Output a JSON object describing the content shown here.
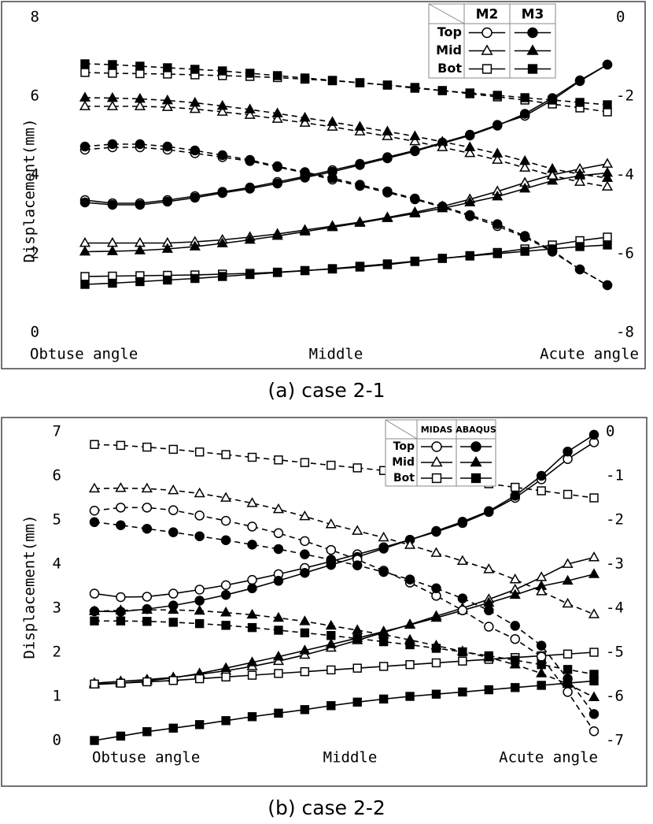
{
  "chart_data": [
    {
      "type": "line",
      "caption": "(a) case 2-1",
      "y_label": "Displacement(mm)",
      "x_labels": [
        "Obtuse angle",
        "Middle",
        "Acute angle"
      ],
      "ylim": [
        0,
        8
      ],
      "yticks": [
        0,
        2,
        4,
        6,
        8
      ],
      "y2lim": [
        -8,
        0
      ],
      "y2ticks": [
        -8,
        -6,
        -4,
        -2,
        0
      ],
      "legend": {
        "columns": [
          "M2",
          "M3"
        ],
        "rows": [
          "Top",
          "Mid",
          "Bot"
        ],
        "markers": [
          "circle",
          "triangle",
          "square"
        ],
        "fills": [
          "#ffffff",
          "#000000"
        ],
        "corner": "top-right"
      },
      "series": [
        {
          "position": "Top",
          "model": "M2",
          "axis": "y",
          "style": "solid",
          "values": [
            3.36,
            3.28,
            3.28,
            3.36,
            3.46,
            3.57,
            3.68,
            3.82,
            3.96,
            4.12,
            4.28,
            4.45,
            4.62,
            4.82,
            5.02,
            5.27,
            5.5,
            5.9,
            6.38,
            6.8
          ]
        },
        {
          "position": "Top",
          "model": "M3",
          "axis": "y",
          "style": "solid",
          "values": [
            3.3,
            3.24,
            3.24,
            3.32,
            3.42,
            3.54,
            3.65,
            3.78,
            3.93,
            4.08,
            4.25,
            4.42,
            4.6,
            4.8,
            5.0,
            5.25,
            5.55,
            5.95,
            6.4,
            6.8
          ]
        },
        {
          "position": "Mid",
          "model": "M2",
          "axis": "y",
          "style": "solid",
          "values": [
            2.27,
            2.27,
            2.27,
            2.27,
            2.3,
            2.35,
            2.42,
            2.5,
            2.6,
            2.7,
            2.8,
            2.92,
            3.05,
            3.2,
            3.38,
            3.58,
            3.8,
            4.0,
            4.15,
            4.28
          ]
        },
        {
          "position": "Mid",
          "model": "M3",
          "axis": "y",
          "style": "solid",
          "values": [
            2.05,
            2.06,
            2.08,
            2.12,
            2.18,
            2.26,
            2.35,
            2.45,
            2.56,
            2.67,
            2.78,
            2.9,
            3.02,
            3.15,
            3.3,
            3.45,
            3.65,
            3.85,
            3.98,
            4.05
          ]
        },
        {
          "position": "Bot",
          "model": "M2",
          "axis": "y",
          "style": "solid",
          "values": [
            1.42,
            1.43,
            1.44,
            1.45,
            1.46,
            1.48,
            1.5,
            1.53,
            1.57,
            1.61,
            1.66,
            1.72,
            1.8,
            1.88,
            1.95,
            2.03,
            2.12,
            2.22,
            2.33,
            2.42
          ]
        },
        {
          "position": "Bot",
          "model": "M3",
          "axis": "y",
          "style": "solid",
          "values": [
            1.22,
            1.25,
            1.29,
            1.33,
            1.37,
            1.42,
            1.47,
            1.52,
            1.57,
            1.62,
            1.68,
            1.74,
            1.81,
            1.88,
            1.94,
            2.0,
            2.06,
            2.12,
            2.18,
            2.22
          ]
        },
        {
          "position": "Top",
          "model": "M2",
          "axis": "y2",
          "style": "dashed",
          "values": [
            -3.36,
            -3.3,
            -3.3,
            -3.36,
            -3.45,
            -3.55,
            -3.65,
            -3.8,
            -3.95,
            -4.12,
            -4.28,
            -4.45,
            -4.62,
            -4.82,
            -5.05,
            -5.3,
            -5.58,
            -5.95,
            -6.4,
            -6.8
          ]
        },
        {
          "position": "Top",
          "model": "M3",
          "axis": "y2",
          "style": "dashed",
          "values": [
            -3.28,
            -3.22,
            -3.22,
            -3.28,
            -3.38,
            -3.5,
            -3.62,
            -3.78,
            -3.93,
            -4.08,
            -4.25,
            -4.42,
            -4.6,
            -4.8,
            -5.02,
            -5.25,
            -5.55,
            -5.92,
            -6.4,
            -6.8
          ]
        },
        {
          "position": "Mid",
          "model": "M2",
          "axis": "y2",
          "style": "dashed",
          "values": [
            -2.26,
            -2.26,
            -2.26,
            -2.28,
            -2.33,
            -2.4,
            -2.48,
            -2.58,
            -2.68,
            -2.78,
            -2.9,
            -3.02,
            -3.15,
            -3.3,
            -3.45,
            -3.62,
            -3.82,
            -4.02,
            -4.18,
            -4.3
          ]
        },
        {
          "position": "Mid",
          "model": "M3",
          "axis": "y2",
          "style": "dashed",
          "values": [
            -2.04,
            -2.05,
            -2.07,
            -2.11,
            -2.17,
            -2.25,
            -2.34,
            -2.44,
            -2.55,
            -2.66,
            -2.78,
            -2.9,
            -3.02,
            -3.16,
            -3.3,
            -3.46,
            -3.65,
            -3.85,
            -3.98,
            -4.08
          ]
        },
        {
          "position": "Bot",
          "model": "M2",
          "axis": "y2",
          "style": "dashed",
          "values": [
            -1.4,
            -1.42,
            -1.43,
            -1.44,
            -1.46,
            -1.48,
            -1.5,
            -1.53,
            -1.57,
            -1.61,
            -1.66,
            -1.72,
            -1.78,
            -1.86,
            -1.94,
            -2.02,
            -2.1,
            -2.2,
            -2.3,
            -2.4
          ]
        },
        {
          "position": "Bot",
          "model": "M3",
          "axis": "y2",
          "style": "dashed",
          "values": [
            -1.18,
            -1.2,
            -1.24,
            -1.28,
            -1.32,
            -1.36,
            -1.42,
            -1.48,
            -1.54,
            -1.6,
            -1.66,
            -1.72,
            -1.8,
            -1.86,
            -1.92,
            -1.98,
            -2.04,
            -2.1,
            -2.16,
            -2.22
          ]
        }
      ]
    },
    {
      "type": "line",
      "caption": "(b) case 2-2",
      "y_label": "Displacement(mm)",
      "x_labels": [
        "Obtuse angle",
        "Middle",
        "Acute angle"
      ],
      "ylim": [
        0,
        7
      ],
      "yticks": [
        0,
        1,
        2,
        3,
        4,
        5,
        6,
        7
      ],
      "y2lim": [
        -7,
        0
      ],
      "y2ticks": [
        -7,
        -6,
        -5,
        -4,
        -3,
        -2,
        -1,
        0
      ],
      "legend": {
        "columns": [
          "MIDAS",
          "ABAQUS"
        ],
        "rows": [
          "Top",
          "Mid",
          "Bot"
        ],
        "markers": [
          "circle",
          "triangle",
          "square"
        ],
        "fills": [
          "#ffffff",
          "#000000"
        ],
        "corner": "top-right"
      },
      "series": [
        {
          "position": "Top",
          "model": "MIDAS",
          "axis": "y",
          "style": "solid",
          "values": [
            3.33,
            3.25,
            3.26,
            3.33,
            3.42,
            3.52,
            3.64,
            3.77,
            3.91,
            4.06,
            4.22,
            4.38,
            4.55,
            4.73,
            4.93,
            5.18,
            5.5,
            5.92,
            6.38,
            6.76
          ]
        },
        {
          "position": "Top",
          "model": "ABAQUS",
          "axis": "y",
          "style": "solid",
          "values": [
            2.93,
            2.92,
            2.98,
            3.06,
            3.17,
            3.3,
            3.45,
            3.62,
            3.8,
            3.98,
            4.16,
            4.35,
            4.55,
            4.75,
            4.96,
            5.2,
            5.55,
            6.0,
            6.55,
            6.93
          ]
        },
        {
          "position": "Mid",
          "model": "MIDAS",
          "axis": "y",
          "style": "solid",
          "values": [
            1.3,
            1.34,
            1.38,
            1.43,
            1.5,
            1.58,
            1.68,
            1.8,
            1.94,
            2.1,
            2.27,
            2.45,
            2.63,
            2.82,
            3.0,
            3.2,
            3.42,
            3.7,
            4.0,
            4.15
          ]
        },
        {
          "position": "Mid",
          "model": "ABAQUS",
          "axis": "y",
          "style": "solid",
          "values": [
            1.27,
            1.3,
            1.35,
            1.42,
            1.52,
            1.64,
            1.77,
            1.9,
            2.04,
            2.18,
            2.32,
            2.47,
            2.62,
            2.78,
            2.95,
            3.12,
            3.3,
            3.5,
            3.62,
            3.77
          ]
        },
        {
          "position": "Bot",
          "model": "MIDAS",
          "axis": "y",
          "style": "solid",
          "values": [
            1.28,
            1.3,
            1.33,
            1.36,
            1.4,
            1.44,
            1.48,
            1.52,
            1.56,
            1.6,
            1.64,
            1.68,
            1.72,
            1.76,
            1.8,
            1.84,
            1.88,
            1.92,
            1.96,
            2.0
          ]
        },
        {
          "position": "Bot",
          "model": "ABAQUS",
          "axis": "y",
          "style": "solid",
          "values": [
            0,
            0.1,
            0.2,
            0.28,
            0.36,
            0.45,
            0.54,
            0.62,
            0.7,
            0.79,
            0.87,
            0.94,
            1.0,
            1.05,
            1.1,
            1.15,
            1.2,
            1.25,
            1.3,
            1.35
          ]
        },
        {
          "position": "Top",
          "model": "MIDAS",
          "axis": "y2",
          "style": "dashed",
          "values": [
            -1.79,
            -1.72,
            -1.72,
            -1.78,
            -1.9,
            -2.02,
            -2.15,
            -2.3,
            -2.48,
            -2.68,
            -2.9,
            -3.15,
            -3.42,
            -3.72,
            -4.05,
            -4.42,
            -4.7,
            -5.1,
            -5.9,
            -6.79
          ]
        },
        {
          "position": "Top",
          "model": "ABAQUS",
          "axis": "y2",
          "style": "dashed",
          "values": [
            -2.05,
            -2.12,
            -2.2,
            -2.28,
            -2.37,
            -2.46,
            -2.56,
            -2.66,
            -2.78,
            -2.9,
            -3.03,
            -3.18,
            -3.35,
            -3.55,
            -3.78,
            -4.05,
            -4.4,
            -4.85,
            -5.6,
            -6.4
          ]
        },
        {
          "position": "Mid",
          "model": "MIDAS",
          "axis": "y2",
          "style": "dashed",
          "values": [
            -1.29,
            -1.28,
            -1.29,
            -1.33,
            -1.4,
            -1.5,
            -1.62,
            -1.76,
            -1.92,
            -2.1,
            -2.25,
            -2.4,
            -2.57,
            -2.75,
            -2.93,
            -3.12,
            -3.35,
            -3.62,
            -3.9,
            -4.14
          ]
        },
        {
          "position": "Mid",
          "model": "ABAQUS",
          "axis": "y2",
          "style": "dashed",
          "values": [
            -4.07,
            -4.05,
            -4.04,
            -4.04,
            -4.06,
            -4.1,
            -4.15,
            -4.22,
            -4.3,
            -4.4,
            -4.5,
            -4.6,
            -4.72,
            -4.85,
            -4.98,
            -5.12,
            -5.28,
            -5.48,
            -5.72,
            -6.02
          ]
        },
        {
          "position": "Bot",
          "model": "MIDAS",
          "axis": "y2",
          "style": "dashed",
          "values": [
            -0.29,
            -0.31,
            -0.35,
            -0.4,
            -0.46,
            -0.52,
            -0.58,
            -0.64,
            -0.7,
            -0.76,
            -0.82,
            -0.88,
            -0.95,
            -1.02,
            -1.1,
            -1.18,
            -1.26,
            -1.34,
            -1.42,
            -1.5
          ]
        },
        {
          "position": "Bot",
          "model": "ABAQUS",
          "axis": "y2",
          "style": "dashed",
          "values": [
            -4.29,
            -4.29,
            -4.3,
            -4.32,
            -4.35,
            -4.39,
            -4.44,
            -4.5,
            -4.56,
            -4.62,
            -4.69,
            -4.76,
            -4.83,
            -4.91,
            -4.99,
            -5.08,
            -5.18,
            -5.28,
            -5.39,
            -5.5
          ]
        }
      ]
    }
  ]
}
